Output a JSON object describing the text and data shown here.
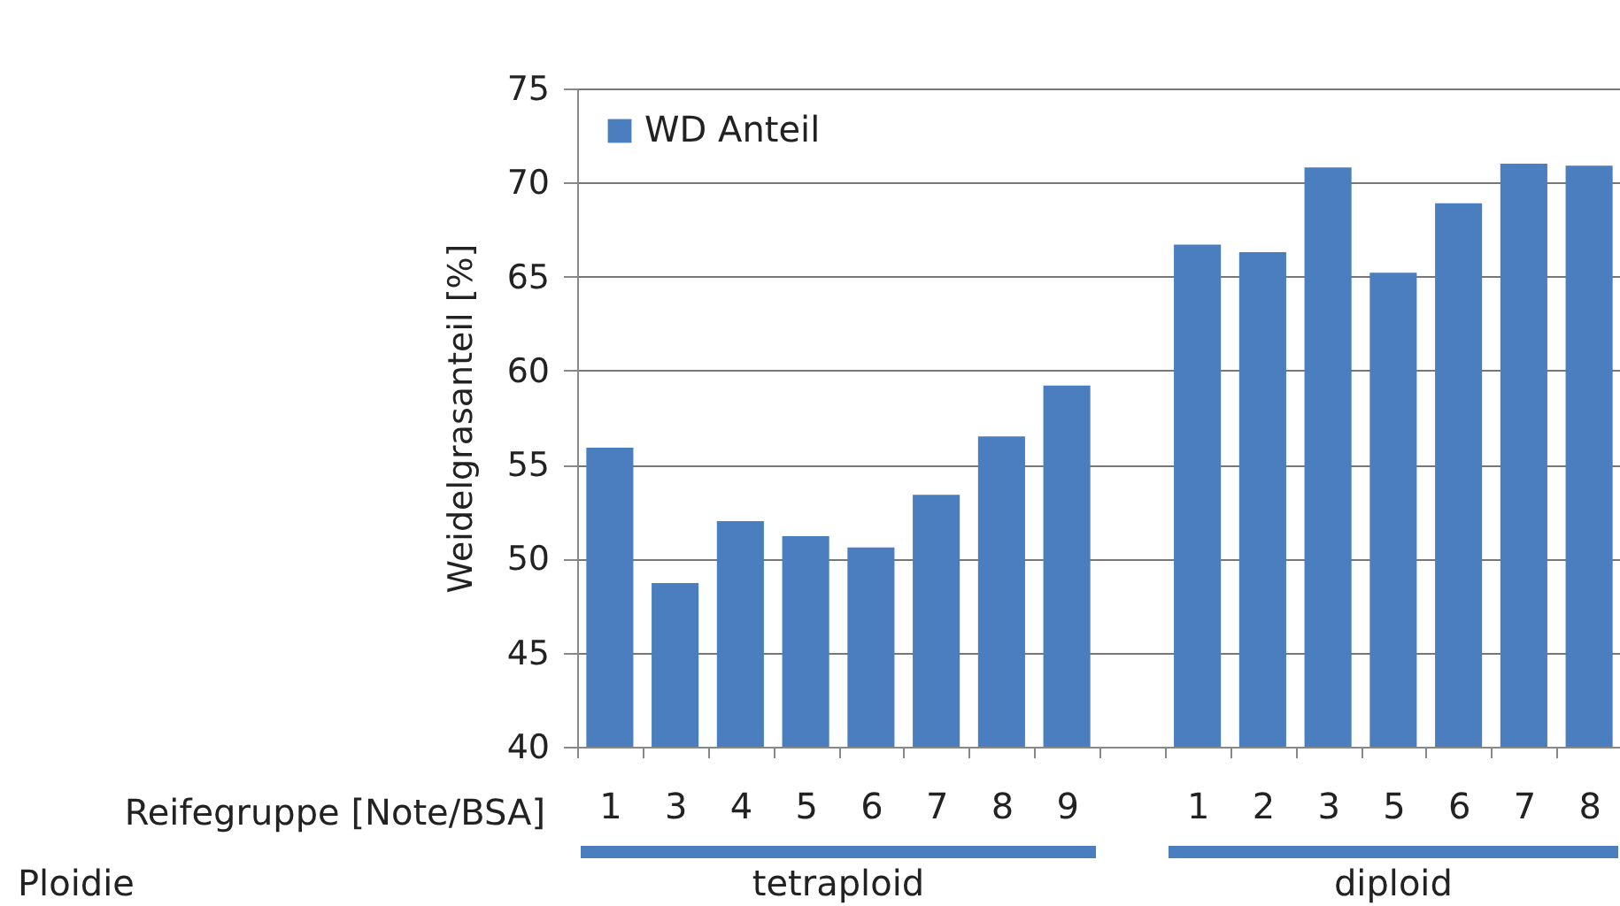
{
  "chart_data": {
    "type": "bar",
    "ylabel": "Weidelgrasanteil [%]",
    "categories": [
      "1",
      "3",
      "4",
      "5",
      "6",
      "7",
      "8",
      "9",
      null,
      "1",
      "2",
      "3",
      "5",
      "6",
      "7",
      "8"
    ],
    "series": [
      {
        "name": "WD Anteil",
        "color": "#4a7ebf",
        "values": [
          55.9,
          48.7,
          52.0,
          51.2,
          50.6,
          53.4,
          56.5,
          59.2,
          null,
          66.7,
          66.3,
          70.8,
          65.2,
          68.9,
          71.0,
          70.9
        ]
      }
    ],
    "ylim": [
      40,
      75
    ],
    "yticks": [
      40,
      45,
      50,
      55,
      60,
      65,
      70,
      75
    ],
    "grid": "y",
    "legend": "top left",
    "annotations": [
      "Reifegruppe [Note/BSA]",
      "Ploidie",
      "tetraploid",
      "diploid"
    ]
  }
}
